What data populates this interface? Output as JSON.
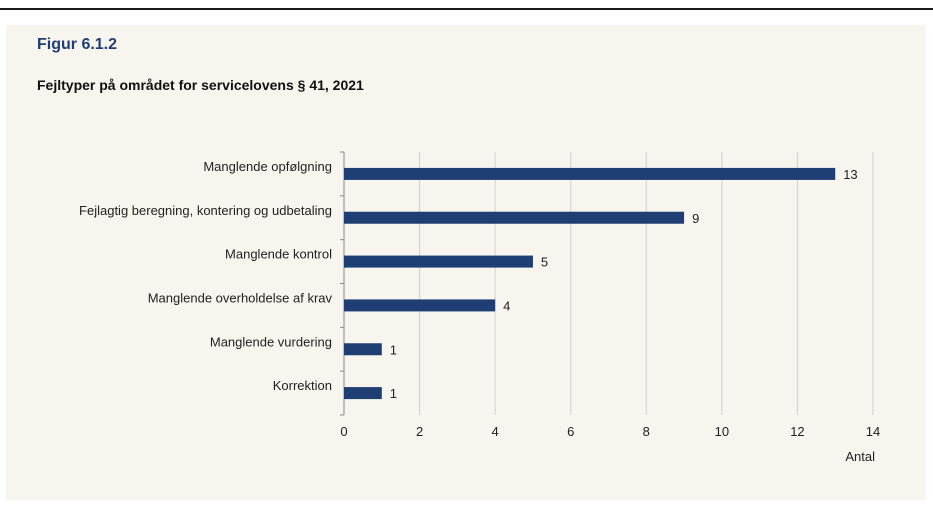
{
  "figure": {
    "label": "Figur 6.1.2",
    "title": "Fejltyper på området for servicelovens § 41, 2021"
  },
  "colors": {
    "bar": "#1f3e74",
    "panel": "#f7f5ee",
    "grid": "#d0d0d0",
    "axis": "#8a8a8a",
    "text": "#222222"
  },
  "chart_data": {
    "type": "bar",
    "orientation": "horizontal",
    "categories": [
      "Manglende opfølgning",
      "Fejlagtig beregning, kontering og udbetaling",
      "Manglende kontrol",
      "Manglende overholdelse af krav",
      "Manglende vurdering",
      "Korrektion"
    ],
    "values": [
      13,
      9,
      5,
      4,
      1,
      1
    ],
    "xlabel": "Antal",
    "xlim": [
      0,
      14
    ],
    "xticks": [
      0,
      2,
      4,
      6,
      8,
      10,
      12,
      14
    ],
    "grid": "vertical",
    "data_labels": true
  }
}
